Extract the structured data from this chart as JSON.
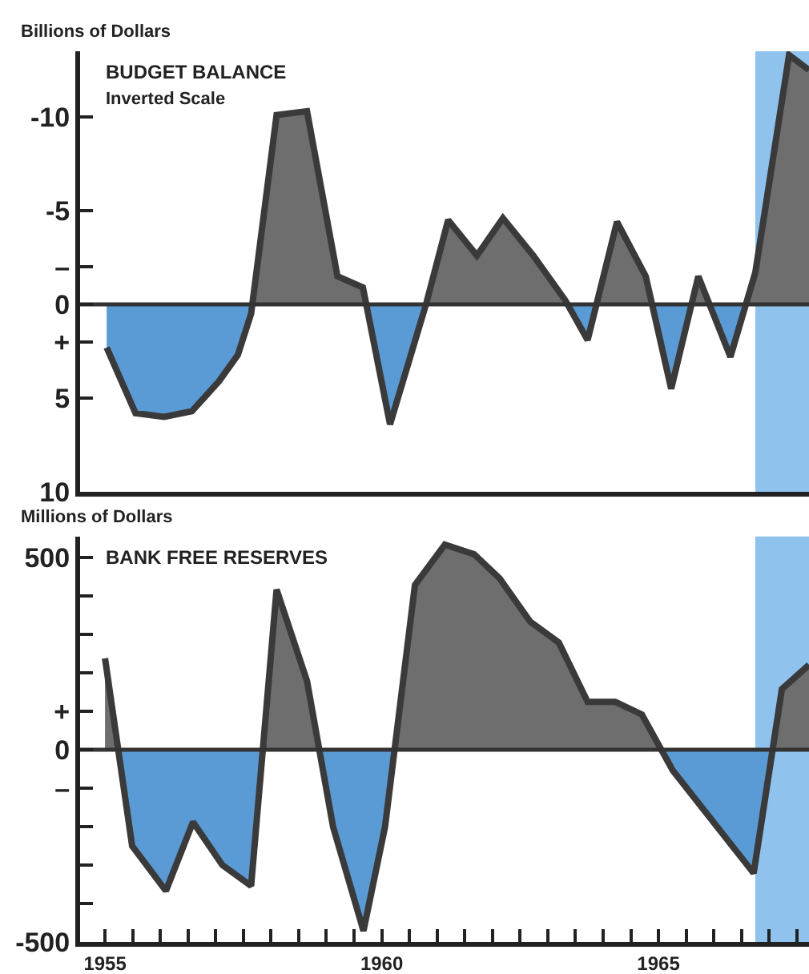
{
  "chart_data": [
    {
      "type": "area",
      "title": "BUDGET BALANCE",
      "subtitle": "Inverted Scale",
      "ylabel": "Billions of Dollars",
      "xlim": [
        1954.55,
        1967.72
      ],
      "ylim": [
        10,
        -13.5
      ],
      "yticks": [
        -10,
        -5,
        {
          "value": -2,
          "label": "–"
        },
        0,
        {
          "value": 2,
          "label": "+"
        },
        5,
        10
      ],
      "tick_labels": "y",
      "series": [
        {
          "color": "#3a3a3a",
          "colors": [
            "#5b9bd5",
            "#5b9bd5",
            "#5b9bd5",
            "#5b9bd5",
            "#5b9bd5",
            "#5b9bd5",
            "#5b9bd5",
            "#6e6e6e",
            "#6e6e6e",
            "#6e6e6e",
            "#6e6e6e",
            "#5b9bd5",
            "#6e6e6e",
            "#6e6e6e",
            "#6e6e6e",
            "#6e6e6e",
            "#6e6e6e",
            "#6e6e6e",
            "#5b9bd5",
            "#6e6e6e",
            "#6e6e6e",
            "#5b9bd5",
            "#6e6e6e",
            "#5b9bd5",
            "#6e6e6e",
            "#6e6e6e",
            "#6e6e6e"
          ],
          "x": [
            1955.03,
            1955.55,
            1956.07,
            1956.57,
            1957.06,
            1957.4,
            1957.64,
            1958.1,
            1958.65,
            1959.2,
            1959.66,
            1960.15,
            1960.8,
            1961.2,
            1961.72,
            1962.19,
            1962.74,
            1963.32,
            1963.72,
            1964.25,
            1964.77,
            1965.23,
            1965.72,
            1966.3,
            1966.75,
            1967.36,
            1967.72
          ],
          "values": [
            2.3,
            5.8,
            6.0,
            5.7,
            4.1,
            2.7,
            0.5,
            -10.1,
            -10.3,
            -1.5,
            -0.9,
            6.4,
            0,
            -4.5,
            -2.6,
            -4.6,
            -2.6,
            -0.2,
            1.9,
            -4.4,
            -1.5,
            4.5,
            -1.5,
            2.8,
            -1.7,
            -13.3,
            -12.5
          ]
        }
      ],
      "ref_lines": [
        {
          "axis": "y",
          "value": 0,
          "color": "#333333"
        }
      ],
      "bands": [
        {
          "axis": "x",
          "from": 1966.75,
          "to": 1967.72,
          "color": "#8fc3ee"
        }
      ]
    },
    {
      "type": "area",
      "title": "BANK FREE RESERVES",
      "ylabel": "Millions of Dollars",
      "xlim": [
        1954.55,
        1967.72
      ],
      "ylim": [
        -500,
        555
      ],
      "xticks": [
        1955,
        {
          "value": 1955.5,
          "label": null
        },
        {
          "value": 1956,
          "label": null
        },
        {
          "value": 1956.5,
          "label": null
        },
        {
          "value": 1957,
          "label": null
        },
        {
          "value": 1957.5,
          "label": null
        },
        {
          "value": 1958,
          "label": null
        },
        {
          "value": 1958.5,
          "label": null
        },
        {
          "value": 1959,
          "label": null
        },
        {
          "value": 1959.5,
          "label": null
        },
        1960,
        {
          "value": 1960.5,
          "label": null
        },
        {
          "value": 1961,
          "label": null
        },
        {
          "value": 1961.5,
          "label": null
        },
        {
          "value": 1962,
          "label": null
        },
        {
          "value": 1962.5,
          "label": null
        },
        {
          "value": 1963,
          "label": null
        },
        {
          "value": 1963.5,
          "label": null
        },
        {
          "value": 1964,
          "label": null
        },
        {
          "value": 1964.5,
          "label": null
        },
        1965,
        {
          "value": 1965.5,
          "label": null
        },
        {
          "value": 1966,
          "label": null
        },
        {
          "value": 1966.5,
          "label": null
        },
        {
          "value": 1967,
          "label": null
        },
        {
          "value": 1967.5,
          "label": null
        }
      ],
      "yticks": [
        -500,
        {
          "value": -400,
          "label": null
        },
        {
          "value": -300,
          "label": null
        },
        {
          "value": -200,
          "label": null
        },
        {
          "value": -100,
          "label": "–"
        },
        0,
        {
          "value": 100,
          "label": "+"
        },
        {
          "value": 200,
          "label": null
        },
        {
          "value": 300,
          "label": null
        },
        {
          "value": 400,
          "label": null
        },
        500
      ],
      "series": [
        {
          "color": "#3a3a3a",
          "colors": [
            "#6e6e6e",
            "#5b9bd5",
            "#5b9bd5",
            "#5b9bd5",
            "#5b9bd5",
            "#5b9bd5",
            "#6e6e6e",
            "#6e6e6e",
            "#5b9bd5",
            "#5b9bd5",
            "#5b9bd5",
            "#6e6e6e",
            "#6e6e6e",
            "#6e6e6e",
            "#6e6e6e",
            "#6e6e6e",
            "#6e6e6e",
            "#6e6e6e",
            "#6e6e6e",
            "#6e6e6e",
            "#5b9bd5",
            "#5b9bd5",
            "#6e6e6e",
            "#6e6e6e"
          ],
          "x": [
            1955.0,
            1955.49,
            1956.1,
            1956.59,
            1957.12,
            1957.64,
            1958.1,
            1958.65,
            1959.12,
            1959.67,
            1960.06,
            1960.6,
            1961.14,
            1961.67,
            1962.13,
            1962.68,
            1963.2,
            1963.72,
            1964.22,
            1964.7,
            1965.26,
            1966.72,
            1967.23,
            1967.72
          ],
          "values": [
            238,
            -250,
            -367,
            -188,
            -300,
            -354,
            417,
            179,
            -200,
            -471,
            -200,
            429,
            534,
            509,
            446,
            334,
            279,
            125,
            125,
            92,
            -54,
            -321,
            158,
            221
          ]
        }
      ],
      "ref_lines": [
        {
          "axis": "y",
          "value": 0,
          "color": "#333333"
        }
      ],
      "bands": [
        {
          "axis": "x",
          "from": 1966.75,
          "to": 1967.72,
          "color": "#8fc3ee"
        }
      ]
    }
  ]
}
